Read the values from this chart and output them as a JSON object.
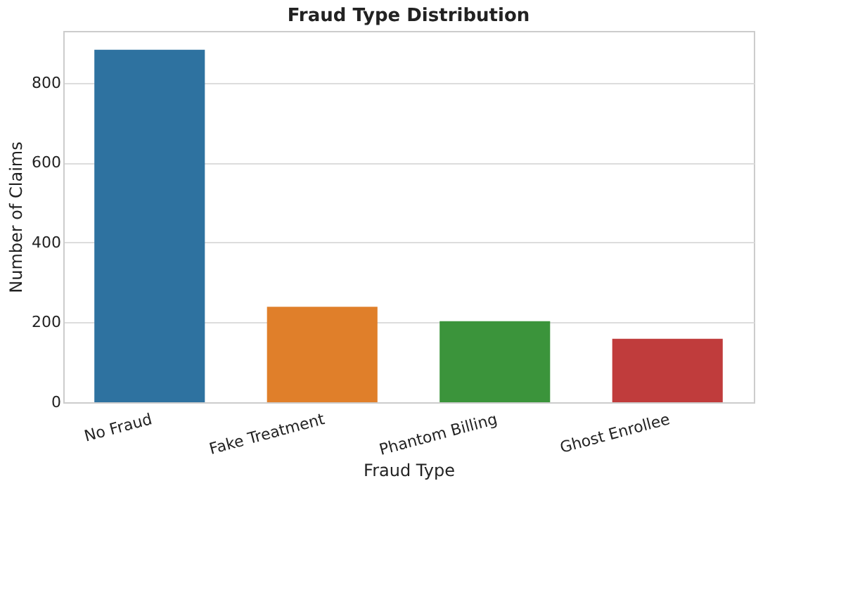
{
  "chart_data": {
    "type": "bar",
    "title": "Fraud Type Distribution",
    "xlabel": "Fraud Type",
    "ylabel": "Number of Claims",
    "categories": [
      "No Fraud",
      "Fake Treatment",
      "Phantom Billing",
      "Ghost Enrollee"
    ],
    "values": [
      883,
      239,
      203,
      159
    ],
    "colors": [
      "#2e72a0",
      "#e07f2a",
      "#3b943b",
      "#c03c3c"
    ],
    "ylim": [
      0,
      930
    ],
    "yticks": [
      0,
      200,
      400,
      600,
      800
    ],
    "grid": "y"
  }
}
